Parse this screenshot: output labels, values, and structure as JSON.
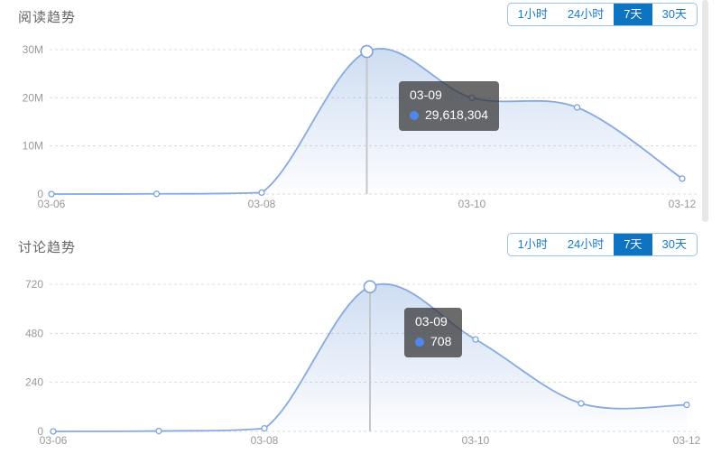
{
  "range_buttons": [
    "1小时",
    "24小时",
    "7天",
    "30天"
  ],
  "active_range": "7天",
  "colors": {
    "accent_blue": "#0e73c0",
    "button_text_blue": "#177ad1",
    "line_blue": "#86aadf",
    "marker_stroke": "#7ea3dc",
    "area_top": "rgba(134,170,223,0.40)",
    "area_bottom": "rgba(134,170,223,0.02)",
    "grid_line": "#dcdcdc",
    "axis_text": "#999999",
    "pointer_line": "#c4c6ca",
    "tooltip_dot": "#5087ec"
  },
  "chart_data": [
    {
      "type": "area",
      "title": "阅读趋势",
      "x": [
        "03-06",
        "03-07",
        "03-08",
        "03-09",
        "03-10",
        "03-11",
        "03-12"
      ],
      "x_labels_shown": [
        "03-06",
        "03-08",
        "03-10",
        "03-12"
      ],
      "values": [
        0,
        40000,
        300000,
        29618304,
        20000000,
        18000000,
        3200000
      ],
      "ylim": [
        0,
        30000000
      ],
      "y_ticks": [
        {
          "value": 0,
          "label": "0"
        },
        {
          "value": 10000000,
          "label": "10M"
        },
        {
          "value": 20000000,
          "label": "20M"
        },
        {
          "value": 30000000,
          "label": "30M"
        }
      ],
      "grid": "dashed",
      "legend": "none",
      "smooth": true,
      "highlight": {
        "x": "03-09",
        "label": "03-09",
        "value": 29618304,
        "value_label": "29,618,304"
      }
    },
    {
      "type": "area",
      "title": "讨论趋势",
      "x": [
        "03-06",
        "03-07",
        "03-08",
        "03-09",
        "03-10",
        "03-11",
        "03-12"
      ],
      "x_labels_shown": [
        "03-06",
        "03-08",
        "03-10",
        "03-12"
      ],
      "values": [
        0,
        2,
        15,
        708,
        450,
        137,
        130
      ],
      "ylim": [
        0,
        720
      ],
      "y_ticks": [
        {
          "value": 0,
          "label": "0"
        },
        {
          "value": 240,
          "label": "240"
        },
        {
          "value": 480,
          "label": "480"
        },
        {
          "value": 720,
          "label": "720"
        }
      ],
      "grid": "dashed",
      "legend": "none",
      "smooth": true,
      "highlight": {
        "x": "03-09",
        "label": "03-09",
        "value": 708,
        "value_label": "708"
      }
    }
  ]
}
